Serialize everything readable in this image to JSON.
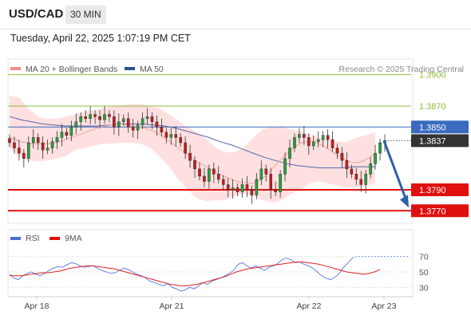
{
  "header": {
    "pair": "USD/CAD",
    "timeframe": "30 MIN"
  },
  "timestamp": "Tuesday, April 22, 2025 1:07:19 PM CET",
  "legend": {
    "ma20_label": "MA 20 + Bollinger Bands",
    "ma50_label": "MA 50",
    "copyright": "Research © 2025 Trading Central",
    "rsi_label": "RSI",
    "ma9_label": "9MA"
  },
  "colors": {
    "targets": "#8fbe3c",
    "pivot": "#3a6bbf",
    "supports": "#e01010",
    "price": "#333333",
    "bands": "#ffd6d6",
    "ma20": "#f0a0a0",
    "ma50": "#5566aa",
    "rsi": "#5577dd",
    "ma9": "#dd2222",
    "arrow": "#2f5fa8"
  },
  "chart_data": [
    {
      "type": "candlestick",
      "x_ticks": [
        "Apr 18",
        "Apr 21",
        "Apr 22",
        "Apr 23"
      ],
      "ylim": [
        1.3758,
        1.3915
      ],
      "levels": [
        {
          "role": "target",
          "value": 1.39,
          "label": "1.3900"
        },
        {
          "role": "target",
          "value": 1.387,
          "label": "1.3870"
        },
        {
          "role": "pivot",
          "value": 1.385,
          "label": "1.3850"
        },
        {
          "role": "last",
          "value": 1.3837,
          "label": "1.3837"
        },
        {
          "role": "support",
          "value": 1.379,
          "label": "1.3790"
        },
        {
          "role": "support",
          "value": 1.377,
          "label": "1.3770"
        }
      ],
      "close": [
        1.3835,
        1.383,
        1.3825,
        1.382,
        1.3835,
        1.384,
        1.3835,
        1.3828,
        1.383,
        1.3836,
        1.384,
        1.3845,
        1.3842,
        1.385,
        1.3855,
        1.386,
        1.3858,
        1.3862,
        1.386,
        1.3857,
        1.3862,
        1.386,
        1.385,
        1.3855,
        1.3858,
        1.385,
        1.3847,
        1.3852,
        1.3858,
        1.386,
        1.3855,
        1.385,
        1.3845,
        1.384,
        1.3843,
        1.384,
        1.3835,
        1.3825,
        1.3818,
        1.381,
        1.3803,
        1.3798,
        1.381,
        1.3805,
        1.38,
        1.3795,
        1.379,
        1.3792,
        1.3788,
        1.3795,
        1.379,
        1.3785,
        1.38,
        1.381,
        1.3805,
        1.379,
        1.3788,
        1.3805,
        1.382,
        1.383,
        1.384,
        1.3843,
        1.384,
        1.3832,
        1.3836,
        1.3838,
        1.3842,
        1.3838,
        1.383,
        1.3825,
        1.3818,
        1.381,
        1.3805,
        1.38,
        1.3795,
        1.3805,
        1.3815,
        1.3825,
        1.3835,
        1.3837
      ],
      "ma20": [
        1.384,
        1.3838,
        1.3836,
        1.3835,
        1.3834,
        1.3834,
        1.3834,
        1.3834,
        1.3835,
        1.3836,
        1.3838,
        1.384,
        1.3842,
        1.3844,
        1.3846,
        1.3848,
        1.385,
        1.3851,
        1.3852,
        1.3853,
        1.3853,
        1.3852,
        1.3851,
        1.385,
        1.3849,
        1.3847,
        1.3845,
        1.3842,
        1.3838,
        1.3834,
        1.383,
        1.3826,
        1.3822,
        1.3818,
        1.3815,
        1.3812,
        1.3809,
        1.3806,
        1.3803,
        1.3801,
        1.3799,
        1.3797,
        1.3797,
        1.3796,
        1.3798,
        1.3801,
        1.3806,
        1.3812,
        1.3818,
        1.3823,
        1.3828,
        1.3832,
        1.3835,
        1.3836,
        1.3836,
        1.3834,
        1.3831,
        1.3828,
        1.3824,
        1.3821,
        1.3818,
        1.3816,
        1.3816,
        1.3818,
        1.3821,
        1.3825
      ],
      "ma50": [
        1.386,
        1.3857,
        1.3855,
        1.3853,
        1.3852,
        1.3851,
        1.3851,
        1.3851,
        1.3851,
        1.3852,
        1.3853,
        1.3853,
        1.3853,
        1.3852,
        1.3851,
        1.3849,
        1.3846,
        1.3843,
        1.384,
        1.3836,
        1.3833,
        1.3829,
        1.3825,
        1.3821,
        1.3818,
        1.3815,
        1.3813,
        1.3812,
        1.3811,
        1.3811,
        1.3811,
        1.3812,
        1.3812,
        1.3812
      ],
      "bb_upper": [
        1.388,
        1.3878,
        1.3868,
        1.386,
        1.3858,
        1.3858,
        1.386,
        1.3862,
        1.3865,
        1.3866,
        1.3868,
        1.387,
        1.3871,
        1.3872,
        1.3872,
        1.387,
        1.3868,
        1.3862,
        1.3856,
        1.385,
        1.3845,
        1.3838,
        1.383,
        1.3826,
        1.3826,
        1.383,
        1.384,
        1.3848,
        1.385,
        1.385,
        1.3848,
        1.3846,
        1.3843,
        1.384,
        1.3838,
        1.3836,
        1.3836,
        1.384,
        1.3842,
        1.3845
      ],
      "bb_lower": [
        1.383,
        1.3822,
        1.3818,
        1.3817,
        1.3818,
        1.382,
        1.3822,
        1.3828,
        1.383,
        1.3832,
        1.3834,
        1.3834,
        1.3835,
        1.3835,
        1.3834,
        1.383,
        1.3822,
        1.3812,
        1.38,
        1.379,
        1.3782,
        1.3779,
        1.378,
        1.378,
        1.3784,
        1.3786,
        1.3784,
        1.378,
        1.3778,
        1.378,
        1.3786,
        1.379,
        1.3796,
        1.3798,
        1.3796,
        1.3794,
        1.3792,
        1.3792,
        1.3794,
        1.3796
      ],
      "forecast": {
        "from": 1.3837,
        "to": 1.3773
      }
    },
    {
      "type": "line",
      "y_ticks": [
        "70",
        "50",
        "30"
      ],
      "ylim": [
        22,
        78
      ],
      "series": [
        {
          "name": "RSI",
          "values": [
            47,
            42,
            40,
            45,
            48,
            50,
            47,
            45,
            48,
            52,
            55,
            57,
            56,
            59,
            62,
            61,
            58,
            56,
            57,
            58,
            55,
            52,
            50,
            48,
            49,
            52,
            55,
            53,
            50,
            47,
            45,
            42,
            38,
            36,
            34,
            32,
            35,
            30,
            28,
            25,
            27,
            30,
            28,
            32,
            36,
            34,
            38,
            40,
            42,
            45,
            48,
            52,
            60,
            62,
            58,
            55,
            58,
            55,
            52,
            56,
            58,
            61,
            66,
            68,
            66,
            62,
            63,
            60,
            58,
            55,
            50,
            45,
            42,
            40,
            43,
            48,
            56,
            62,
            68,
            70,
            70,
            70,
            70,
            70,
            70,
            70
          ]
        },
        {
          "name": "9MA",
          "values": [
            45,
            45,
            45,
            46,
            47,
            48,
            49,
            49,
            50,
            51,
            53,
            55,
            56,
            57,
            58,
            58,
            57,
            56,
            55,
            54,
            52,
            50,
            48,
            46,
            44,
            42,
            40,
            38,
            36,
            34,
            33,
            32,
            32,
            33,
            34,
            36,
            38,
            40,
            42,
            44,
            47,
            50,
            52,
            54,
            55,
            56,
            57,
            58,
            59,
            60,
            61,
            62,
            63,
            63,
            62,
            61,
            60,
            58,
            56,
            54,
            52,
            50,
            49,
            48,
            47,
            48,
            50,
            53
          ]
        }
      ]
    }
  ]
}
